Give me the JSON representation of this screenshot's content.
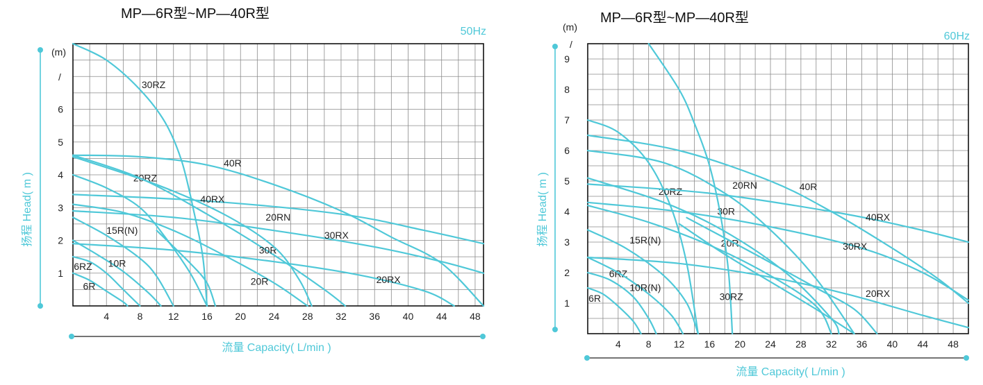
{
  "colors": {
    "accent": "#4fc8d8",
    "grid": "#8a8a8a",
    "frame": "#111111",
    "text": "#222222"
  },
  "chart_data": [
    {
      "type": "line",
      "title": "MP—6R型~MP—40R型",
      "frequency": "50Hz",
      "xlabel": "流量 Capacity( L/min )",
      "ylabel": "扬程 Head( m )",
      "yunit": "(m)",
      "ytop_label": "/",
      "xlim": [
        0,
        49
      ],
      "ylim": [
        0,
        8
      ],
      "xticks": [
        "4",
        "8",
        "12",
        "16",
        "20",
        "24",
        "28",
        "32",
        "36",
        "40",
        "44",
        "48"
      ],
      "yticks": [
        "1",
        "2",
        "3",
        "4",
        "5",
        "6"
      ],
      "grid": true,
      "series": [
        {
          "name": "6R",
          "label": {
            "text": "6R",
            "x": 1.2,
            "y": 0.5
          },
          "points": [
            [
              0,
              1.0
            ],
            [
              2,
              0.78
            ],
            [
              4,
              0.45
            ],
            [
              6,
              0.12
            ],
            [
              6.5,
              0
            ]
          ]
        },
        {
          "name": "6RZ",
          "label": {
            "text": "6RZ",
            "x": 0.1,
            "y": 1.1
          },
          "points": [
            [
              0,
              1.5
            ],
            [
              2,
              1.35
            ],
            [
              4,
              1.0
            ],
            [
              6,
              0.5
            ],
            [
              8,
              0
            ]
          ]
        },
        {
          "name": "10R",
          "label": {
            "text": "10R",
            "x": 4.2,
            "y": 1.2
          },
          "points": [
            [
              0,
              2.0
            ],
            [
              3,
              1.55
            ],
            [
              6,
              1.05
            ],
            [
              9,
              0.4
            ],
            [
              10.5,
              0
            ]
          ]
        },
        {
          "name": "15R(N)",
          "label": {
            "text": "15R(N)",
            "x": 4.0,
            "y": 2.2
          },
          "points": [
            [
              0,
              2.7
            ],
            [
              4,
              2.15
            ],
            [
              8,
              1.45
            ],
            [
              10,
              0.9
            ],
            [
              12,
              0
            ]
          ]
        },
        {
          "name": "20RZ",
          "label": {
            "text": "20RZ",
            "x": 7.2,
            "y": 3.8
          },
          "points": [
            [
              0,
              4.0
            ],
            [
              4,
              3.6
            ],
            [
              8,
              3.0
            ],
            [
              11,
              2.1
            ],
            [
              14,
              1.0
            ],
            [
              16,
              0
            ]
          ]
        },
        {
          "name": "20R",
          "label": {
            "text": "20R",
            "x": 21.2,
            "y": 0.65
          },
          "points": [
            [
              0,
              3.1
            ],
            [
              6,
              2.85
            ],
            [
              12,
              2.3
            ],
            [
              18,
              1.55
            ],
            [
              24,
              0.7
            ],
            [
              28,
              0
            ]
          ]
        },
        {
          "name": "30R",
          "label": {
            "text": "30R",
            "x": 22.2,
            "y": 1.6
          },
          "points": [
            [
              0,
              4.6
            ],
            [
              8,
              3.9
            ],
            [
              16,
              2.8
            ],
            [
              24,
              1.55
            ],
            [
              30,
              0.5
            ],
            [
              32.5,
              0
            ]
          ]
        },
        {
          "name": "30RZ",
          "label": {
            "text": "30RZ",
            "x": 8.2,
            "y": 6.65
          },
          "points": [
            [
              0,
              8
            ],
            [
              4,
              7.5
            ],
            [
              8,
              6.6
            ],
            [
              11,
              5.6
            ],
            [
              13,
              4.4
            ],
            [
              14.5,
              2.8
            ],
            [
              15.5,
              1.5
            ],
            [
              16,
              0
            ]
          ]
        },
        {
          "name": "20RN",
          "label": {
            "text": "20RN",
            "x": 23.0,
            "y": 2.6
          },
          "points": [
            [
              0,
              4.55
            ],
            [
              10,
              3.7
            ],
            [
              18,
              2.8
            ],
            [
              24,
              1.8
            ],
            [
              27,
              0.8
            ],
            [
              28.5,
              0
            ]
          ]
        },
        {
          "name": "40R",
          "label": {
            "text": "40R",
            "x": 18.0,
            "y": 4.25
          },
          "points": [
            [
              0,
              4.6
            ],
            [
              8,
              4.55
            ],
            [
              16,
              4.3
            ],
            [
              24,
              3.7
            ],
            [
              32,
              2.9
            ],
            [
              38,
              2.1
            ],
            [
              44,
              1.3
            ],
            [
              49,
              0
            ]
          ]
        },
        {
          "name": "40RX",
          "label": {
            "text": "40RX",
            "x": 15.2,
            "y": 3.15
          },
          "points": [
            [
              0,
              3.4
            ],
            [
              16,
              3.2
            ],
            [
              32,
              2.8
            ],
            [
              42,
              2.3
            ],
            [
              49,
              1.9
            ]
          ]
        },
        {
          "name": "30RX",
          "label": {
            "text": "30RX",
            "x": 30.0,
            "y": 2.05
          },
          "points": [
            [
              0,
              2.9
            ],
            [
              12,
              2.7
            ],
            [
              24,
              2.3
            ],
            [
              36,
              1.8
            ],
            [
              44,
              1.35
            ],
            [
              49,
              1.0
            ]
          ]
        },
        {
          "name": "20RX",
          "label": {
            "text": "20RX",
            "x": 36.2,
            "y": 0.7
          },
          "points": [
            [
              0,
              1.9
            ],
            [
              12,
              1.7
            ],
            [
              24,
              1.35
            ],
            [
              34,
              0.95
            ],
            [
              42,
              0.45
            ],
            [
              45.5,
              0
            ]
          ]
        },
        {
          "name": "",
          "points": [
            [
              10,
              2.3
            ],
            [
              14,
              1.3
            ],
            [
              16,
              0.7
            ],
            [
              17,
              0
            ]
          ]
        }
      ]
    },
    {
      "type": "line",
      "title": "MP—6R型~MP—40R型",
      "frequency": "60Hz",
      "xlabel": "流量 Capacity( L/min )",
      "ylabel": "扬程 Head( m )",
      "yunit": "(m)",
      "ytop_label": "/",
      "xlim": [
        0,
        50
      ],
      "ylim": [
        0,
        9.5
      ],
      "xticks": [
        "4",
        "8",
        "12",
        "16",
        "20",
        "24",
        "28",
        "32",
        "36",
        "40",
        "44",
        "48"
      ],
      "yticks": [
        "1",
        "2",
        "3",
        "4",
        "5",
        "6",
        "7",
        "8",
        "9"
      ],
      "grid": true,
      "series": [
        {
          "name": "6R",
          "label": {
            "text": "6R",
            "x": 0.1,
            "y": 1.05
          },
          "points": [
            [
              0,
              1.5
            ],
            [
              2,
              1.3
            ],
            [
              4,
              0.9
            ],
            [
              6,
              0.4
            ],
            [
              7,
              0
            ]
          ]
        },
        {
          "name": "6RZ",
          "label": {
            "text": "6RZ",
            "x": 2.8,
            "y": 1.85
          },
          "points": [
            [
              0,
              2.0
            ],
            [
              3,
              1.75
            ],
            [
              6,
              1.2
            ],
            [
              8,
              0.5
            ],
            [
              9,
              0
            ]
          ]
        },
        {
          "name": "10R(N)",
          "label": {
            "text": "10R(N)",
            "x": 5.5,
            "y": 1.4
          },
          "points": [
            [
              0,
              2.5
            ],
            [
              4,
              2.0
            ],
            [
              8,
              1.3
            ],
            [
              11,
              0.6
            ],
            [
              12.5,
              0
            ]
          ]
        },
        {
          "name": "15R(N)",
          "label": {
            "text": "15R(N)",
            "x": 5.5,
            "y": 2.95
          },
          "points": [
            [
              0,
              3.4
            ],
            [
              5,
              2.8
            ],
            [
              10,
              1.9
            ],
            [
              13,
              1.0
            ],
            [
              14.5,
              0
            ]
          ]
        },
        {
          "name": "20RZ",
          "label": {
            "text": "20RZ",
            "x": 9.3,
            "y": 4.55
          },
          "points": [
            [
              0,
              7.0
            ],
            [
              4,
              6.6
            ],
            [
              8,
              5.6
            ],
            [
              11,
              4.1
            ],
            [
              13,
              2.3
            ],
            [
              14.5,
              0
            ]
          ]
        },
        {
          "name": "20R",
          "label": {
            "text": "20R",
            "x": 17.5,
            "y": 2.85
          },
          "points": [
            [
              0,
              4.2
            ],
            [
              8,
              3.65
            ],
            [
              16,
              2.9
            ],
            [
              24,
              1.9
            ],
            [
              30,
              0.9
            ],
            [
              32,
              0
            ]
          ]
        },
        {
          "name": "30R",
          "label": {
            "text": "30R",
            "x": 17.0,
            "y": 3.9
          },
          "points": [
            [
              0,
              5.1
            ],
            [
              10,
              4.3
            ],
            [
              18,
              3.35
            ],
            [
              26,
              2.0
            ],
            [
              32,
              0.5
            ],
            [
              33,
              0
            ]
          ]
        },
        {
          "name": "30RZ",
          "label": {
            "text": "30RZ",
            "x": 17.3,
            "y": 1.1
          },
          "points": [
            [
              8,
              9.5
            ],
            [
              12,
              8.0
            ],
            [
              14,
              6.9
            ],
            [
              16,
              5.5
            ],
            [
              17.5,
              3.8
            ],
            [
              18.5,
              2.0
            ],
            [
              19,
              0
            ]
          ]
        },
        {
          "name": "20RN",
          "label": {
            "text": "20RN",
            "x": 19.0,
            "y": 4.75
          },
          "points": [
            [
              0,
              6.0
            ],
            [
              10,
              5.6
            ],
            [
              18,
              4.6
            ],
            [
              24,
              3.4
            ],
            [
              30,
              1.8
            ],
            [
              35,
              0
            ]
          ]
        },
        {
          "name": "40R",
          "label": {
            "text": "40R",
            "x": 27.8,
            "y": 4.7
          },
          "points": [
            [
              0,
              6.5
            ],
            [
              12,
              6.0
            ],
            [
              24,
              5.0
            ],
            [
              32,
              4.0
            ],
            [
              40,
              2.8
            ],
            [
              46,
              1.8
            ],
            [
              50,
              1.0
            ]
          ]
        },
        {
          "name": "40RX",
          "label": {
            "text": "40RX",
            "x": 36.5,
            "y": 3.7
          },
          "points": [
            [
              0,
              4.9
            ],
            [
              16,
              4.6
            ],
            [
              32,
              4.0
            ],
            [
              42,
              3.5
            ],
            [
              50,
              3.0
            ]
          ]
        },
        {
          "name": "30RX",
          "label": {
            "text": "30RX",
            "x": 33.5,
            "y": 2.75
          },
          "points": [
            [
              0,
              4.3
            ],
            [
              12,
              4.0
            ],
            [
              24,
              3.5
            ],
            [
              36,
              2.8
            ],
            [
              44,
              2.0
            ],
            [
              50,
              1.1
            ]
          ]
        },
        {
          "name": "20RX",
          "label": {
            "text": "20RX",
            "x": 36.5,
            "y": 1.2
          },
          "points": [
            [
              0,
              2.5
            ],
            [
              12,
              2.3
            ],
            [
              24,
              1.85
            ],
            [
              34,
              1.3
            ],
            [
              44,
              0.6
            ],
            [
              50,
              0.2
            ]
          ]
        },
        {
          "name": "",
          "points": [
            [
              12,
              3.6
            ],
            [
              18,
              2.6
            ],
            [
              24,
              1.7
            ],
            [
              30,
              0.8
            ],
            [
              35,
              0
            ]
          ]
        },
        {
          "name": "",
          "points": [
            [
              13,
              3.8
            ],
            [
              22,
              2.6
            ],
            [
              30,
              1.5
            ],
            [
              35,
              0.8
            ],
            [
              38,
              0
            ]
          ]
        }
      ]
    }
  ]
}
